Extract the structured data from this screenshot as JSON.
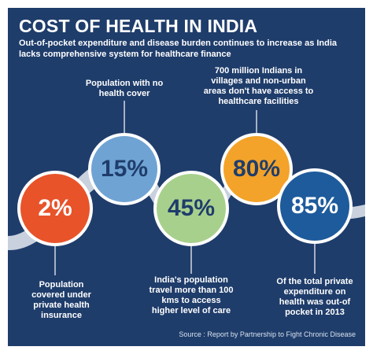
{
  "header": {
    "title": "COST OF HEALTH IN INDIA",
    "subtitle": "Out-of-pocket expenditure and disease burden continues to increase as India lacks comprehensive system for healthcare finance"
  },
  "items": [
    {
      "value": "2%",
      "description": "Population covered under private health insurance"
    },
    {
      "value": "15%",
      "description": "Population with no health cover"
    },
    {
      "value": "45%",
      "description": "India's population travel more than 100 kms to access higher level of care"
    },
    {
      "value": "80%",
      "description": "700 million Indians in villages and non-urban areas don't have access to healthcare facilities"
    },
    {
      "value": "85%",
      "description": "Of the total private expenditure on health was out-of pocket in 2013"
    }
  ],
  "source": "Source : Report by Partnership to Fight Chronic Disease"
}
